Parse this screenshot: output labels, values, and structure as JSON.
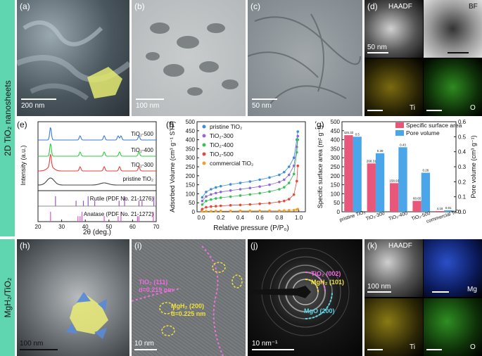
{
  "sidebar_top": "2D TiO₂ nanosheets",
  "sidebar_bottom": "MgH₂/TiO₂",
  "panels": {
    "a": {
      "label": "(a)",
      "scale": "200 nm"
    },
    "b": {
      "label": "(b)",
      "scale": "100 nm"
    },
    "c": {
      "label": "(c)",
      "scale": "50 nm"
    },
    "d": {
      "label": "(d)",
      "haadf": "HAADF",
      "bf": "BF",
      "scale": "50 nm",
      "ti": "Ti",
      "o": "O"
    },
    "h": {
      "label": "(h)",
      "scale": "100 nm"
    },
    "i": {
      "label": "(i)",
      "scale": "10 nm",
      "ann1a": "TiO₂ (111)",
      "ann1b": "d=0.219 nm",
      "ann2a": "MgH₂ (200)",
      "ann2b": "d=0.225 nm"
    },
    "j": {
      "label": "(j)",
      "scale": "10 nm⁻¹",
      "ring1": "TiO₂ (002)",
      "ring2": "MgH₂ (101)",
      "ring3": "MgO (200)"
    },
    "k": {
      "label": "(k)",
      "haadf": "HAADF",
      "scale": "100 nm",
      "mg": "Mg",
      "ti": "Ti",
      "o": "O"
    }
  },
  "chart_data": [
    {
      "type": "line",
      "panel": "(e)",
      "xlabel": "2θ (deg.)",
      "ylabel": "Intensity (a.u.)",
      "xlim": [
        20,
        70
      ],
      "xticks": [
        "20",
        "30",
        "40",
        "50",
        "60",
        "70"
      ],
      "series": [
        {
          "name": "TiO₂-500",
          "color": "#3a7bd5",
          "offset": 3.0,
          "peaks": [
            25.3,
            37.8,
            48.0,
            53.9,
            55.1,
            62.7
          ]
        },
        {
          "name": "TiO₂-400",
          "color": "#2ecc40",
          "offset": 2.1,
          "peaks": [
            25.3,
            37.8,
            48.0,
            54.5,
            62.7
          ]
        },
        {
          "name": "TiO₂-300",
          "color": "#e8413c",
          "offset": 1.2,
          "peaks": [
            25.3,
            37.8,
            48.0,
            54.5,
            62.7
          ]
        },
        {
          "name": "pristine TiO₂",
          "color": "#444444",
          "offset": 0.4,
          "peaks": [
            25.3,
            48.0
          ]
        }
      ],
      "reference": [
        {
          "name": "Rutile (PDF No. 21-1276)",
          "color": "#9b59b6",
          "lines": [
            27.4,
            36.1,
            39.2,
            41.2,
            44.0,
            54.3,
            56.6,
            62.7,
            64.0,
            69.0
          ]
        },
        {
          "name": "Anatase (PDF No. 21-1272)",
          "color": "#e056c8",
          "lines": [
            25.3,
            36.9,
            37.8,
            38.6,
            48.0,
            53.9,
            55.1,
            62.1,
            62.7,
            68.8
          ]
        }
      ]
    },
    {
      "type": "scatter",
      "panel": "(f)",
      "xlabel": "Relative pressure (P/P₀)",
      "ylabel": "Adsorbed Volume (cm³ g⁻¹ STP)",
      "xlim": [
        0,
        1.0
      ],
      "ylim": [
        0,
        500
      ],
      "xticks": [
        "0.0",
        "0.2",
        "0.4",
        "0.6",
        "0.8",
        "1.0"
      ],
      "yticks": [
        "0",
        "50",
        "100",
        "150",
        "200",
        "250",
        "300",
        "350",
        "400",
        "450",
        "500"
      ],
      "legend": "top-left",
      "series": [
        {
          "name": "pristine TiO₂",
          "color": "#3a8fd8",
          "x": [
            0.01,
            0.05,
            0.1,
            0.15,
            0.2,
            0.3,
            0.4,
            0.5,
            0.6,
            0.7,
            0.8,
            0.85,
            0.9,
            0.95,
            0.98,
            0.99
          ],
          "y": [
            80,
            110,
            125,
            135,
            142,
            152,
            160,
            168,
            178,
            190,
            205,
            220,
            250,
            300,
            400,
            445
          ]
        },
        {
          "name": "TiO₂-300",
          "color": "#8e6ad8",
          "x": [
            0.01,
            0.05,
            0.1,
            0.15,
            0.2,
            0.3,
            0.4,
            0.5,
            0.6,
            0.7,
            0.8,
            0.85,
            0.9,
            0.95,
            0.98,
            0.99
          ],
          "y": [
            60,
            85,
            96,
            104,
            110,
            118,
            125,
            132,
            140,
            150,
            165,
            178,
            205,
            255,
            360,
            420
          ]
        },
        {
          "name": "TiO₂-400",
          "color": "#3bbd5a",
          "x": [
            0.01,
            0.05,
            0.1,
            0.15,
            0.2,
            0.3,
            0.4,
            0.5,
            0.6,
            0.7,
            0.8,
            0.85,
            0.9,
            0.95,
            0.98,
            0.99
          ],
          "y": [
            40,
            60,
            68,
            74,
            78,
            84,
            90,
            96,
            103,
            112,
            125,
            136,
            160,
            210,
            330,
            400
          ]
        },
        {
          "name": "TiO₂-500",
          "color": "#e24a3b",
          "x": [
            0.01,
            0.05,
            0.1,
            0.15,
            0.2,
            0.3,
            0.4,
            0.5,
            0.6,
            0.7,
            0.8,
            0.85,
            0.9,
            0.95,
            0.98,
            0.99
          ],
          "y": [
            15,
            25,
            29,
            31,
            33,
            36,
            38,
            41,
            44,
            48,
            55,
            60,
            70,
            95,
            170,
            255
          ]
        },
        {
          "name": "commercial TiO₂",
          "color": "#f0a02a",
          "x": [
            0.01,
            0.05,
            0.1,
            0.15,
            0.2,
            0.3,
            0.4,
            0.5,
            0.6,
            0.7,
            0.8,
            0.85,
            0.9,
            0.95,
            0.98,
            0.99
          ],
          "y": [
            2,
            3,
            3,
            4,
            4,
            4,
            5,
            5,
            5,
            6,
            6,
            7,
            8,
            9,
            12,
            15
          ]
        }
      ]
    },
    {
      "type": "bar",
      "panel": "(g)",
      "ylabel": "Specific surface area (m² g⁻¹)",
      "y2label": "Pore volume (cm³ g⁻¹)",
      "ylim": [
        0,
        500
      ],
      "y2lim": [
        0,
        0.6
      ],
      "yticks": [
        "0",
        "50",
        "100",
        "150",
        "200",
        "250",
        "300",
        "350",
        "400",
        "450",
        "500"
      ],
      "y2ticks": [
        "0.0",
        "0.1",
        "0.2",
        "0.3",
        "0.4",
        "0.5",
        "0.6"
      ],
      "legend": "top-right",
      "categories": [
        "pristine TiO₂",
        "TiO₂-300",
        "TiO₂-400",
        "TiO₂-500",
        "commercial TiO₂"
      ],
      "series": [
        {
          "name": "Specific surface area",
          "color": "#e8577a",
          "values": [
            425.32,
            268.31,
            158.93,
            60.65,
            4.18
          ],
          "labels": [
            "425.32",
            "268.31",
            "158.93",
            "60.65",
            "4.18"
          ]
        },
        {
          "name": "Pore volume",
          "color": "#4aa6e8",
          "values": [
            0.5,
            0.39,
            0.43,
            0.26,
            0.01
          ],
          "labels": [
            "0.5",
            "0.39",
            "0.43",
            "0.26",
            "0.01"
          ]
        }
      ]
    }
  ]
}
